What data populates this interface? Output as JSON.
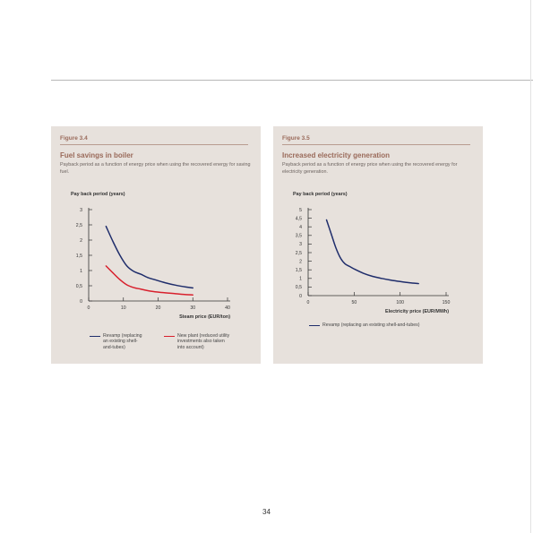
{
  "page": {
    "number": "34"
  },
  "chart_data": [
    {
      "id": "fig34",
      "figure_label": "Figure 3.4",
      "title": "Fuel savings in boiler",
      "subtitle": "Payback period as a function of energy price when using the recovered energy for saving fuel.",
      "type": "line",
      "ylabel": "Pay back period (years)",
      "xlabel": "Steam price (EUR/ton)",
      "xlim": [
        0,
        40
      ],
      "ylim": [
        0,
        3
      ],
      "xticks": [
        0,
        10,
        20,
        30,
        40
      ],
      "xtick_labels": [
        "0",
        "10",
        "20",
        "30",
        "40"
      ],
      "yticks": [
        0,
        0.5,
        1,
        1.5,
        2,
        2.5,
        3
      ],
      "ytick_labels": [
        "0",
        "0,5",
        "1",
        "1,5",
        "2",
        "2,5",
        "3"
      ],
      "grid": false,
      "legend_position": "bottom",
      "series": [
        {
          "name": "Revamp (replacing an existing shell-and-tubes)",
          "legend_lines": [
            "Revamp (replacing",
            "an existing shell-",
            "and-tubes)"
          ],
          "color": "#1f2d6b",
          "x": [
            5,
            7,
            9,
            11,
            13,
            15,
            17,
            19,
            22,
            25,
            28,
            30
          ],
          "y": [
            2.45,
            1.95,
            1.5,
            1.15,
            0.97,
            0.88,
            0.77,
            0.7,
            0.6,
            0.52,
            0.46,
            0.43
          ]
        },
        {
          "name": "New plant (reduced utility investments also taken into account)",
          "legend_lines": [
            "New plant (reduced utility",
            "investments also taken",
            "into account)"
          ],
          "color": "#d8202d",
          "x": [
            5,
            7,
            9,
            11,
            13,
            15,
            18,
            21,
            25,
            28,
            30
          ],
          "y": [
            1.15,
            0.92,
            0.7,
            0.53,
            0.44,
            0.39,
            0.32,
            0.28,
            0.24,
            0.21,
            0.2
          ]
        }
      ]
    },
    {
      "id": "fig35",
      "figure_label": "Figure 3.5",
      "title": "Increased electricity generation",
      "subtitle": "Payback period as a function of energy price when using the recovered energy for electricity generation.",
      "type": "line",
      "ylabel": "Pay back period (years)",
      "xlabel": "Electricity price (EUR/MWh)",
      "xlim": [
        0,
        150
      ],
      "ylim": [
        0,
        5
      ],
      "xticks": [
        0,
        50,
        100,
        150
      ],
      "xtick_labels": [
        "0",
        "50",
        "100",
        "150"
      ],
      "yticks": [
        0,
        0.5,
        1,
        1.5,
        2,
        2.5,
        3,
        3.5,
        4,
        4.5,
        5
      ],
      "ytick_labels": [
        "0",
        "0,5",
        "1",
        "1,5",
        "2",
        "2,5",
        "3",
        "3,5",
        "4",
        "4,5",
        "5"
      ],
      "grid": false,
      "legend_position": "bottom",
      "series": [
        {
          "name": "Revamp (replacing an existing shell-and-tubes)",
          "legend_lines": [
            "Revamp (replacing an existing shell-and-tubes)"
          ],
          "color": "#1f2d6b",
          "x": [
            20,
            25,
            30,
            35,
            40,
            45,
            50,
            60,
            70,
            80,
            90,
            100,
            110,
            120
          ],
          "y": [
            4.4,
            3.6,
            2.8,
            2.2,
            1.85,
            1.7,
            1.55,
            1.3,
            1.12,
            1.0,
            0.9,
            0.82,
            0.75,
            0.7
          ]
        }
      ]
    }
  ]
}
